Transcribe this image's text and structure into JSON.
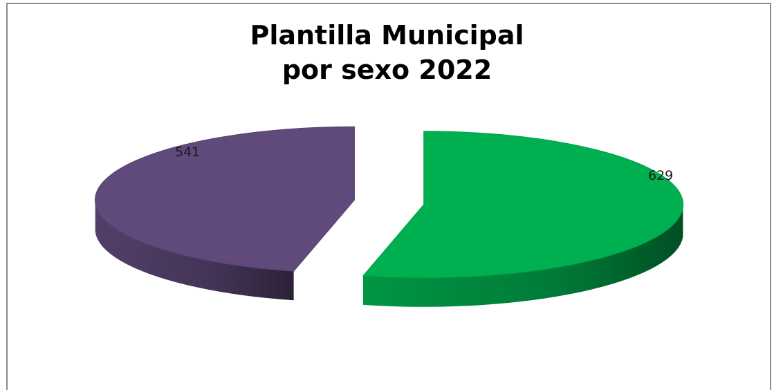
{
  "chart_data": {
    "type": "pie",
    "title_lines": [
      "Plantilla Municipal",
      "por sexo 2022"
    ],
    "slices": [
      {
        "label": "541",
        "value": 541,
        "color": "#604a7b"
      },
      {
        "label": "629",
        "value": 629,
        "color": "#00b050"
      }
    ],
    "style": "3d-exploded",
    "legend": "none"
  }
}
